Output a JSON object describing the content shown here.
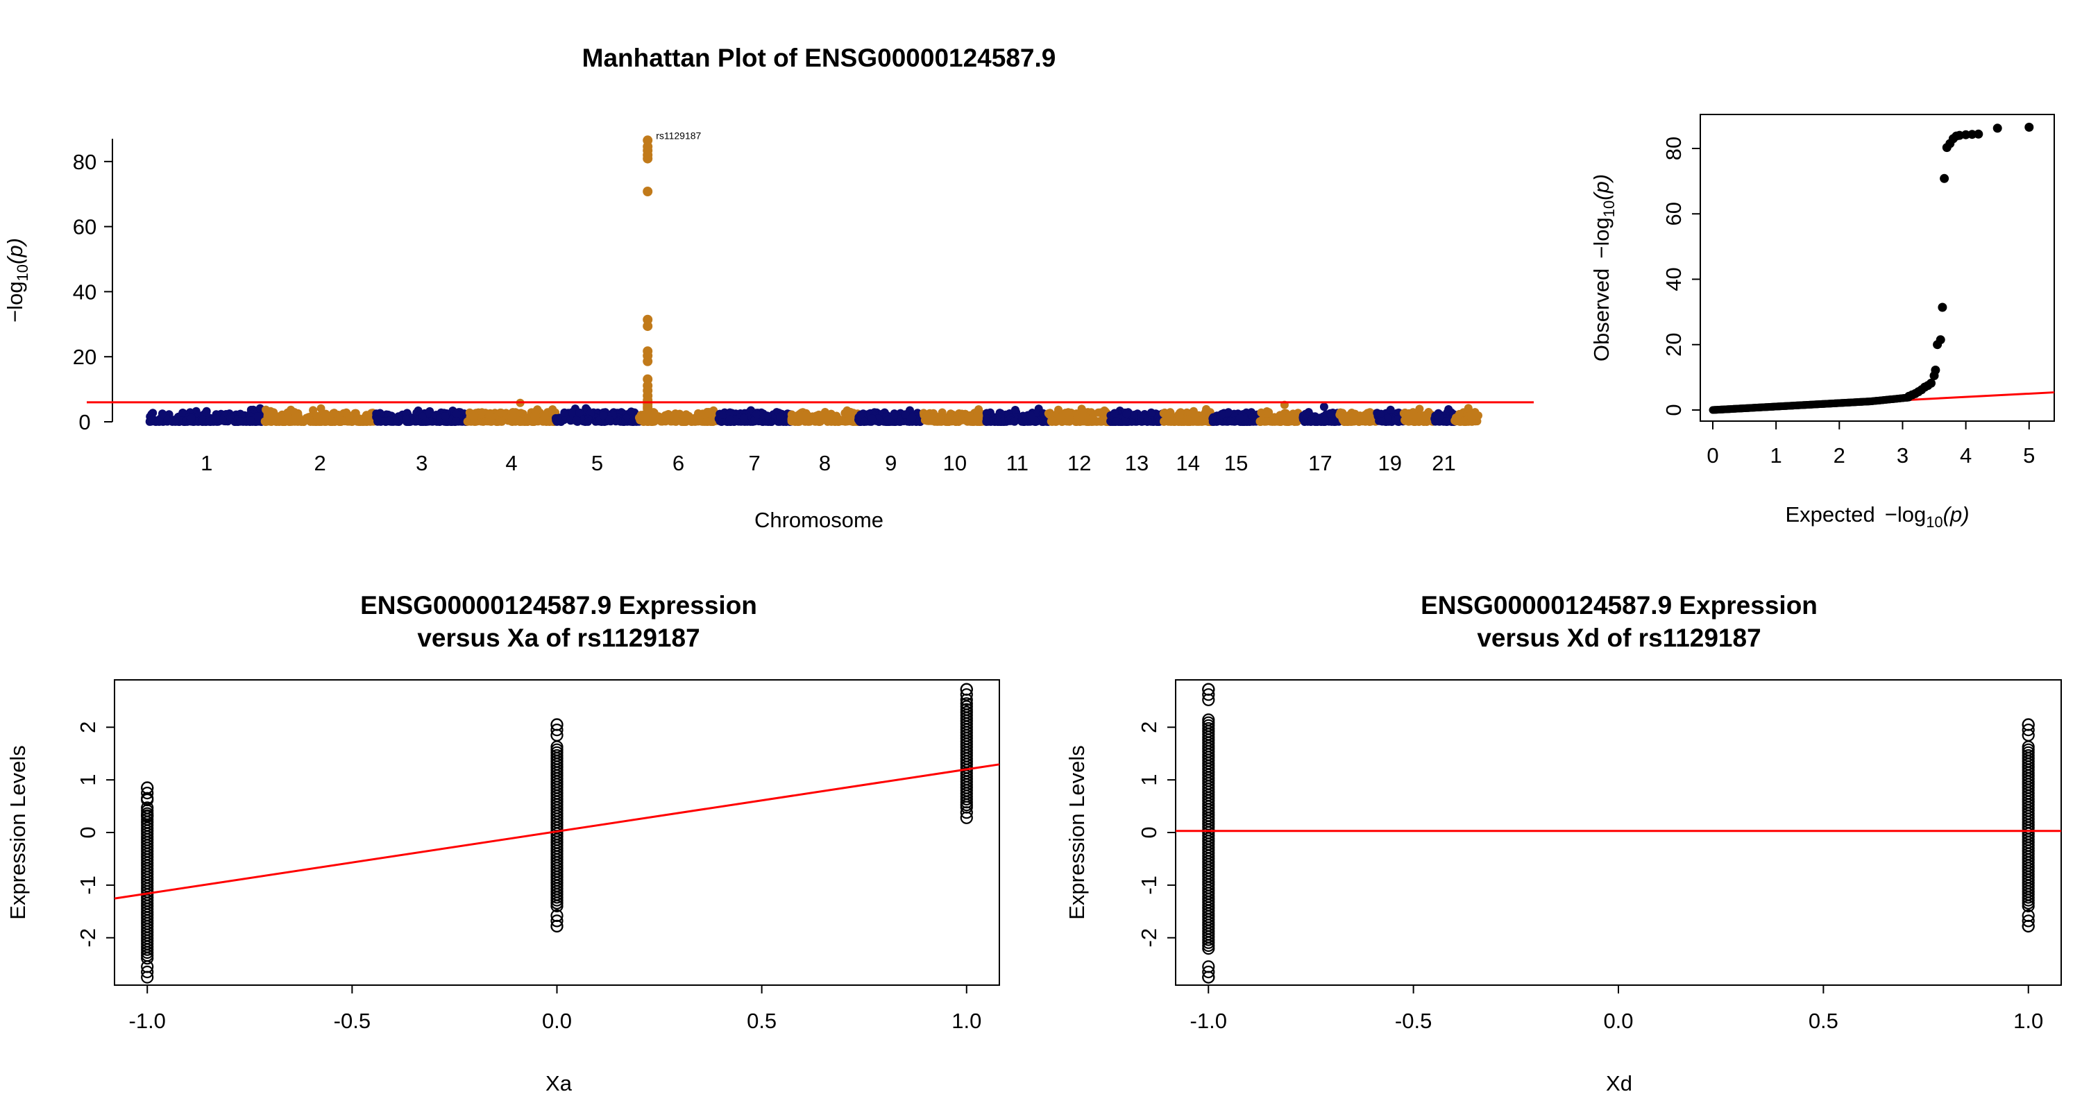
{
  "chart_data": [
    {
      "id": "manhattan",
      "type": "scatter",
      "title": "Manhattan Plot of ENSG00000124587.9",
      "xlabel": "Chromosome",
      "ylabel_parts": {
        "minus": "−",
        "base": "log",
        "sub": "10",
        "arg": "(p)"
      },
      "x_tick_labels": [
        "1",
        "2",
        "3",
        "4",
        "5",
        "6",
        "7",
        "8",
        "9",
        "10",
        "11",
        "12",
        "13",
        "14",
        "15",
        "17",
        "19",
        "21"
      ],
      "y_ticks": [
        0,
        20,
        40,
        60,
        80
      ],
      "ylim": [
        0,
        87
      ],
      "chromosomes": 22,
      "colors": {
        "odd": "#0b0b6f",
        "even": "#c17a1a",
        "threshold": "#ff0000"
      },
      "threshold": 6,
      "peak": {
        "chromosome": 6,
        "label": "rs1129187",
        "values": [
          86.5,
          84.6,
          83.4,
          82.0,
          80.9,
          70.8,
          31.4,
          29.4,
          21.7,
          20.3,
          18.6,
          13.1,
          11.1,
          9.6,
          8.0,
          6.6,
          5.4,
          4.6,
          4.0
        ]
      },
      "background_values_range": [
        0,
        4
      ]
    },
    {
      "id": "qq",
      "type": "scatter",
      "xlabel_parts": {
        "prefix": "Expected",
        "minus": "−",
        "base": "log",
        "sub": "10",
        "arg": "(p)"
      },
      "ylabel_parts": {
        "prefix": "Observed",
        "minus": "−",
        "base": "log",
        "sub": "10",
        "arg": "(p)"
      },
      "x_ticks": [
        0,
        1,
        2,
        3,
        4,
        5
      ],
      "y_ticks": [
        0,
        20,
        40,
        60,
        80
      ],
      "xlim": [
        0,
        5.2
      ],
      "ylim": [
        0,
        87
      ],
      "tail_points": [
        [
          3.1,
          4.2
        ],
        [
          3.15,
          4.6
        ],
        [
          3.2,
          5.0
        ],
        [
          3.25,
          5.6
        ],
        [
          3.3,
          6.2
        ],
        [
          3.35,
          7.0
        ],
        [
          3.4,
          7.5
        ],
        [
          3.45,
          8.2
        ],
        [
          3.5,
          10.5
        ],
        [
          3.52,
          12.2
        ],
        [
          3.55,
          20.0
        ],
        [
          3.6,
          21.5
        ],
        [
          3.63,
          31.4
        ],
        [
          3.66,
          70.8
        ],
        [
          3.7,
          80.3
        ],
        [
          3.75,
          81.5
        ],
        [
          3.8,
          83.0
        ],
        [
          3.85,
          83.8
        ],
        [
          3.9,
          84.0
        ],
        [
          4.0,
          84.2
        ],
        [
          4.1,
          84.3
        ],
        [
          4.2,
          84.4
        ],
        [
          4.5,
          86.2
        ],
        [
          5.0,
          86.5
        ]
      ],
      "diagonal": {
        "from": [
          0,
          0
        ],
        "to": [
          5.2,
          5.2
        ]
      }
    },
    {
      "id": "xa",
      "type": "scatter",
      "title_lines": [
        "ENSG00000124587.9 Expression",
        "versus Xa of rs1129187"
      ],
      "xlabel": "Xa",
      "ylabel": "Expression Levels",
      "x_ticks": [
        -1.0,
        -0.5,
        0.0,
        0.5,
        1.0
      ],
      "x_tick_labels": [
        "-1.0",
        "-0.5",
        "0.0",
        "0.5",
        "1.0"
      ],
      "y_ticks": [
        -2,
        -1,
        0,
        1,
        2
      ],
      "y_tick_labels": [
        "-2",
        "-1",
        "0",
        "1",
        "2"
      ],
      "xlim": [
        -1.08,
        1.08
      ],
      "ylim": [
        -2.9,
        2.9
      ],
      "groups": [
        {
          "x": -1.0,
          "min": -2.75,
          "max": 0.85,
          "outliers": [
            0.85,
            0.62,
            0.32
          ]
        },
        {
          "x": 0.0,
          "min": -1.78,
          "max": 2.05,
          "outliers": [
            2.05,
            -1.78
          ]
        },
        {
          "x": 1.0,
          "min": 0.28,
          "max": 2.72,
          "outliers": [
            2.72
          ]
        }
      ],
      "regression": {
        "intercept": 0.02,
        "slope": 1.18
      }
    },
    {
      "id": "xd",
      "type": "scatter",
      "title_lines": [
        "ENSG00000124587.9 Expression",
        "versus Xd of rs1129187"
      ],
      "xlabel": "Xd",
      "ylabel": "Expression Levels",
      "x_ticks": [
        -1.0,
        -0.5,
        0.0,
        0.5,
        1.0
      ],
      "x_tick_labels": [
        "-1.0",
        "-0.5",
        "0.0",
        "0.5",
        "1.0"
      ],
      "y_ticks": [
        -2,
        -1,
        0,
        1,
        2
      ],
      "y_tick_labels": [
        "-2",
        "-1",
        "0",
        "1",
        "2"
      ],
      "xlim": [
        -1.08,
        1.08
      ],
      "ylim": [
        -2.9,
        2.9
      ],
      "groups": [
        {
          "x": -1.0,
          "min": -2.75,
          "max": 2.72,
          "outliers": [
            2.72,
            -2.75
          ]
        },
        {
          "x": 1.0,
          "min": -1.78,
          "max": 2.05,
          "outliers": [
            2.05,
            -1.78
          ]
        }
      ],
      "regression": {
        "intercept": 0.03,
        "slope": 0.0
      }
    }
  ]
}
